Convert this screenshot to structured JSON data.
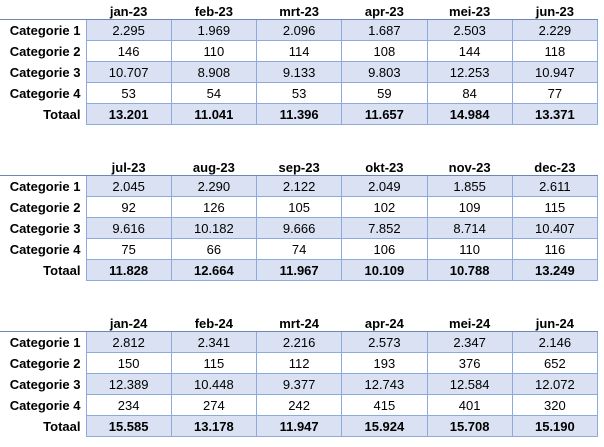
{
  "colors": {
    "band_fill": "#D9E1F2",
    "cell_border": "#8EA9DB",
    "header_rule": "#6F87B5",
    "text": "#000000",
    "background": "#FFFFFF"
  },
  "chart_data": [
    {
      "type": "table",
      "months": [
        "jan-23",
        "feb-23",
        "mrt-23",
        "apr-23",
        "mei-23",
        "jun-23"
      ],
      "rows": [
        {
          "label": "Categorie 1",
          "values": [
            "2.295",
            "1.969",
            "2.096",
            "1.687",
            "2.503",
            "2.229"
          ]
        },
        {
          "label": "Categorie 2",
          "values": [
            "146",
            "110",
            "114",
            "108",
            "144",
            "118"
          ]
        },
        {
          "label": "Categorie 3",
          "values": [
            "10.707",
            "8.908",
            "9.133",
            "9.803",
            "12.253",
            "10.947"
          ]
        },
        {
          "label": "Categorie 4",
          "values": [
            "53",
            "54",
            "53",
            "59",
            "84",
            "77"
          ]
        }
      ],
      "total": {
        "label": "Totaal",
        "values": [
          "13.201",
          "11.041",
          "11.396",
          "11.657",
          "14.984",
          "13.371"
        ]
      }
    },
    {
      "type": "table",
      "months": [
        "jul-23",
        "aug-23",
        "sep-23",
        "okt-23",
        "nov-23",
        "dec-23"
      ],
      "rows": [
        {
          "label": "Categorie 1",
          "values": [
            "2.045",
            "2.290",
            "2.122",
            "2.049",
            "1.855",
            "2.611"
          ]
        },
        {
          "label": "Categorie 2",
          "values": [
            "92",
            "126",
            "105",
            "102",
            "109",
            "115"
          ]
        },
        {
          "label": "Categorie 3",
          "values": [
            "9.616",
            "10.182",
            "9.666",
            "7.852",
            "8.714",
            "10.407"
          ]
        },
        {
          "label": "Categorie 4",
          "values": [
            "75",
            "66",
            "74",
            "106",
            "110",
            "116"
          ]
        }
      ],
      "total": {
        "label": "Totaal",
        "values": [
          "11.828",
          "12.664",
          "11.967",
          "10.109",
          "10.788",
          "13.249"
        ]
      }
    },
    {
      "type": "table",
      "months": [
        "jan-24",
        "feb-24",
        "mrt-24",
        "apr-24",
        "mei-24",
        "jun-24"
      ],
      "rows": [
        {
          "label": "Categorie 1",
          "values": [
            "2.812",
            "2.341",
            "2.216",
            "2.573",
            "2.347",
            "2.146"
          ]
        },
        {
          "label": "Categorie 2",
          "values": [
            "150",
            "115",
            "112",
            "193",
            "376",
            "652"
          ]
        },
        {
          "label": "Categorie 3",
          "values": [
            "12.389",
            "10.448",
            "9.377",
            "12.743",
            "12.584",
            "12.072"
          ]
        },
        {
          "label": "Categorie 4",
          "values": [
            "234",
            "274",
            "242",
            "415",
            "401",
            "320"
          ]
        }
      ],
      "total": {
        "label": "Totaal",
        "values": [
          "15.585",
          "13.178",
          "11.947",
          "15.924",
          "15.708",
          "15.190"
        ]
      }
    }
  ]
}
